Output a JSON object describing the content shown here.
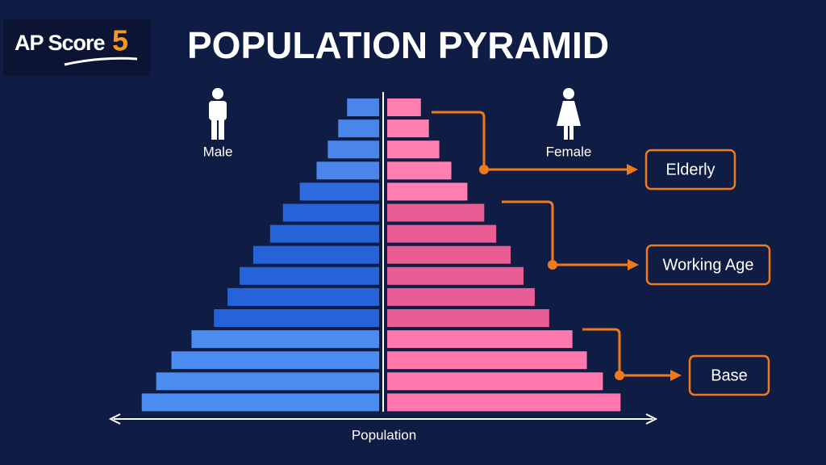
{
  "logo": {
    "text": "AP Score",
    "number": "5"
  },
  "chart_data": {
    "type": "pyramid",
    "title": "POPULATION PYRAMID",
    "x_label": "Population",
    "categories": [
      null,
      null,
      null,
      null,
      null,
      null,
      null,
      null,
      null,
      null,
      null,
      null,
      null,
      null,
      null
    ],
    "xlim": [
      0,
      340
    ],
    "series": [
      {
        "name": "Male",
        "side": "left",
        "values": [
          40,
          51,
          64,
          78,
          99,
          120,
          136,
          157,
          174,
          189,
          206,
          234,
          259,
          278,
          296
        ],
        "colors": [
          "#4a86ea",
          "#4a86ea",
          "#4a86ea",
          "#4a86ea",
          "#2f6be0",
          "#2563d9",
          "#2563d9",
          "#2563d9",
          "#2563d9",
          "#2563d9",
          "#2563d9",
          "#4a8cf0",
          "#4a8cf0",
          "#4a8cf0",
          "#4a8cf0"
        ]
      },
      {
        "name": "Female",
        "side": "right",
        "values": [
          42,
          52,
          65,
          80,
          100,
          121,
          136,
          154,
          170,
          184,
          202,
          231,
          249,
          269,
          291
        ],
        "colors": [
          "#ff7fb1",
          "#ff7fb1",
          "#ff7fb1",
          "#ff7fb1",
          "#ff7fb1",
          "#e95d94",
          "#e95d94",
          "#e95d94",
          "#e95d94",
          "#e95d94",
          "#e95d94",
          "#ff79ae",
          "#ff79ae",
          "#ff79ae",
          "#ff79ae"
        ]
      }
    ],
    "annotations": [
      {
        "label": "Elderly",
        "color": "#f07a1a"
      },
      {
        "label": "Working Age",
        "color": "#f07a1a"
      },
      {
        "label": "Base",
        "color": "#f07a1a"
      }
    ]
  }
}
